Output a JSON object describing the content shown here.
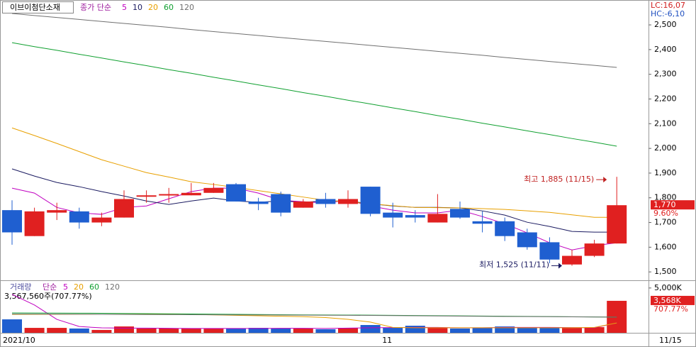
{
  "chart_data": [
    {
      "type": "candlestick",
      "title": "이브이첨단소재",
      "legend_label": "종가 단순",
      "top_right": [
        {
          "text": "LC:16,07",
          "color": "#d02020"
        },
        {
          "text": "HC:-6,10",
          "color": "#2050c0"
        }
      ],
      "categories": [
        "2021/10",
        null,
        null,
        null,
        null,
        null,
        null,
        null,
        null,
        null,
        null,
        null,
        null,
        null,
        null,
        null,
        null,
        "11",
        null,
        null,
        null,
        null,
        null,
        null,
        null,
        null,
        null,
        null
      ],
      "last_date": "11/15",
      "up_color": "#e02020",
      "down_color": "#1f5fd0",
      "open": [
        1750,
        1645,
        1740,
        1745,
        1700,
        1720,
        1805,
        1810,
        1810,
        1820,
        1855,
        1785,
        1815,
        1760,
        1795,
        1775,
        1845,
        1740,
        1730,
        1700,
        1755,
        1705,
        1705,
        1660,
        1620,
        1530,
        1565,
        1615
      ],
      "high": [
        1790,
        1760,
        1780,
        1760,
        1740,
        1830,
        1830,
        1840,
        1860,
        1860,
        1860,
        1800,
        1825,
        1795,
        1820,
        1830,
        1845,
        1780,
        1750,
        1815,
        1785,
        1745,
        1720,
        1675,
        1640,
        1590,
        1630,
        1885
      ],
      "low": [
        1610,
        1645,
        1710,
        1675,
        1685,
        1720,
        1780,
        1780,
        1810,
        1820,
        1785,
        1750,
        1725,
        1760,
        1760,
        1760,
        1725,
        1680,
        1700,
        1700,
        1715,
        1660,
        1625,
        1590,
        1535,
        1525,
        1560,
        1615
      ],
      "close": [
        1660,
        1745,
        1750,
        1700,
        1720,
        1795,
        1810,
        1815,
        1820,
        1840,
        1785,
        1775,
        1740,
        1785,
        1775,
        1795,
        1735,
        1720,
        1720,
        1735,
        1720,
        1695,
        1645,
        1600,
        1550,
        1565,
        1615,
        1770
      ],
      "series": [
        {
          "name": "5",
          "color": "#c000c0",
          "values": [
            1839,
            1819,
            1761,
            1739,
            1733,
            1761,
            1767,
            1796,
            1825,
            1839,
            1839,
            1819,
            1790,
            1784,
            1779,
            1790,
            1767,
            1750,
            1739,
            1739,
            1750,
            1724,
            1695,
            1658,
            1618,
            1589,
            1606,
            1618
          ]
        },
        {
          "name": "10",
          "color": "#1a1a60",
          "values": [
            1917,
            1888,
            1862,
            1845,
            1825,
            1807,
            1787,
            1773,
            1787,
            1799,
            1787,
            1782,
            1787,
            1782,
            1787,
            1787,
            1776,
            1767,
            1761,
            1761,
            1759,
            1747,
            1730,
            1701,
            1684,
            1664,
            1661,
            1661
          ]
        },
        {
          "name": "20",
          "color": "#e8a000",
          "values": [
            2083,
            2052,
            2020,
            1987,
            1954,
            1928,
            1902,
            1884,
            1865,
            1854,
            1842,
            1829,
            1816,
            1803,
            1790,
            1783,
            1776,
            1768,
            1761,
            1760,
            1759,
            1756,
            1753,
            1747,
            1741,
            1731,
            1721,
            1721
          ]
        },
        {
          "name": "60",
          "color": "#10a030",
          "values": [
            2428,
            2412,
            2397,
            2381,
            2366,
            2350,
            2335,
            2319,
            2304,
            2288,
            2273,
            2257,
            2242,
            2226,
            2211,
            2195,
            2180,
            2164,
            2149,
            2133,
            2118,
            2102,
            2087,
            2071,
            2056,
            2040,
            2025,
            2009
          ]
        },
        {
          "name": "120",
          "color": "#707070",
          "values": [
            2546,
            2538,
            2530,
            2522,
            2514,
            2506,
            2498,
            2490,
            2481,
            2473,
            2465,
            2457,
            2449,
            2441,
            2433,
            2425,
            2417,
            2409,
            2401,
            2393,
            2385,
            2377,
            2368,
            2360,
            2352,
            2344,
            2336,
            2328
          ]
        }
      ],
      "annotations": [
        {
          "text": "최고 1,885 (11/15)",
          "value": 1885,
          "color": "#c02020"
        },
        {
          "text": "최저 1,525 (11/11)",
          "value": 1525,
          "color": "#1a1a60"
        }
      ],
      "last_label": {
        "value": 1770,
        "label": "1,770"
      },
      "change_label": "9.60%",
      "ylim": [
        1466,
        2595
      ],
      "yticks": [
        {
          "value": 1500,
          "label": "1,500"
        },
        {
          "value": 1600,
          "label": "1,600"
        },
        {
          "value": 1700,
          "label": "1,700"
        },
        {
          "value": 1800,
          "label": "1,800"
        },
        {
          "value": 1900,
          "label": "1,900"
        },
        {
          "value": 2000,
          "label": "2,000"
        },
        {
          "value": 2100,
          "label": "2,100"
        },
        {
          "value": 2200,
          "label": "2,200"
        },
        {
          "value": 2300,
          "label": "2,300"
        },
        {
          "value": 2400,
          "label": "2,400"
        },
        {
          "value": 2500,
          "label": "2,500"
        }
      ]
    },
    {
      "type": "bar",
      "title": "거래량",
      "legend_label": "단순",
      "info": "3,567,560주(707.77%)",
      "values": [
        1500,
        550,
        550,
        480,
        320,
        710,
        480,
        480,
        480,
        480,
        480,
        550,
        480,
        480,
        400,
        550,
        870,
        550,
        790,
        550,
        480,
        550,
        710,
        630,
        550,
        550,
        630,
        3568
      ],
      "series": [
        {
          "name": "5",
          "color": "#c000c0",
          "values": [
            4290,
            3100,
            1500,
            700,
            550,
            520,
            520,
            500,
            480,
            480,
            480,
            480,
            500,
            500,
            480,
            520,
            560,
            580,
            600,
            600,
            560,
            560,
            600,
            600,
            600,
            580,
            560,
            1100
          ]
        },
        {
          "name": "20",
          "color": "#e8a000",
          "values": [
            2060,
            2060,
            2060,
            2060,
            2060,
            2060,
            2060,
            2060,
            2060,
            2000,
            1950,
            1900,
            1850,
            1800,
            1700,
            1500,
            1200,
            600,
            560,
            560,
            560,
            560,
            560,
            560,
            560,
            560,
            600,
            1100
          ]
        },
        {
          "name": "60",
          "color": "#10a030",
          "values": [
            2220,
            2210,
            2200,
            2190,
            2180,
            2160,
            2140,
            2120,
            2100,
            2080,
            2060,
            2040,
            2020,
            2000,
            1990,
            1980,
            1970,
            1950,
            1930,
            1910,
            1890,
            1870,
            1850,
            1830,
            1810,
            1790,
            1770,
            1750
          ]
        },
        {
          "name": "120",
          "color": "#707070",
          "values": [
            2100,
            2090,
            2080,
            2070,
            2060,
            2050,
            2040,
            2030,
            2020,
            2010,
            2000,
            1990,
            1980,
            1970,
            1960,
            1950,
            1940,
            1920,
            1900,
            1880,
            1860,
            1840,
            1820,
            1810,
            1800,
            1780,
            1760,
            1750
          ]
        }
      ],
      "last_label": {
        "value": 3568,
        "label": "3,568K"
      },
      "change_label": "707.77%",
      "ylim": [
        0,
        5700
      ],
      "yticks": [
        {
          "value": 5000,
          "label": "5,000K"
        }
      ]
    }
  ]
}
